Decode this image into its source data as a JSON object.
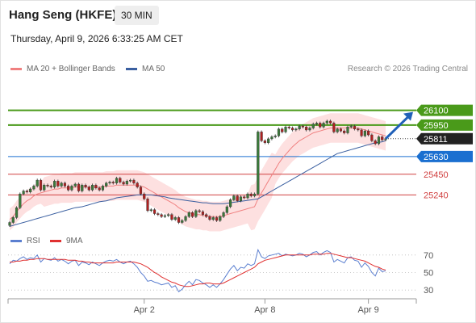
{
  "header": {
    "title": "Hang Seng (HKFE)",
    "timeframe": "30 MIN",
    "datetime": "Thursday, April 9, 2026 6:33:25 AM CET"
  },
  "legend": {
    "bollinger_label": "MA 20 + Bollinger Bands",
    "ma50_label": "MA 50",
    "credit": "Research © 2026 Trading Central"
  },
  "rsi_legend": {
    "rsi_label": "RSI",
    "ma_label": "9MA"
  },
  "colors": {
    "bollinger": "#f08080",
    "band_fill": "#fde0e0",
    "ma50": "#3a5fa0",
    "rsi": "#5b7fd0",
    "rsi_ma": "#e03030",
    "resistance_green": "#4a9a1a",
    "support_blue": "#1a6fd0",
    "support_red": "#d04040",
    "price_tag": "#222222",
    "candle_up": "#3a7a3a",
    "candle_down": "#b02020"
  },
  "chart_data": [
    {
      "type": "candlestick",
      "x_tick_labels": [
        "Apr 2",
        "Apr 8",
        "Apr 9"
      ],
      "ylim": [
        24800,
        26400
      ],
      "levels": [
        {
          "value": 26100,
          "label": "26100",
          "kind": "resistance"
        },
        {
          "value": 25950,
          "label": "25950",
          "kind": "resistance"
        },
        {
          "value": 25811,
          "label": "25811",
          "kind": "last_price"
        },
        {
          "value": 25630,
          "label": "25630",
          "kind": "pivot"
        },
        {
          "value": 25450,
          "label": "25450",
          "kind": "support"
        },
        {
          "value": 25240,
          "label": "25240",
          "kind": "support"
        }
      ],
      "close": [
        24960,
        25010,
        25110,
        25250,
        25280,
        25270,
        25300,
        25330,
        25390,
        25290,
        25340,
        25330,
        25320,
        25380,
        25330,
        25360,
        25330,
        25290,
        25330,
        25350,
        25280,
        25340,
        25320,
        25290,
        25340,
        25310,
        25290,
        25330,
        25360,
        25370,
        25360,
        25410,
        25370,
        25350,
        25380,
        25390,
        25360,
        25320,
        25250,
        25200,
        25080,
        25090,
        25050,
        25040,
        25020,
        25030,
        25040,
        24990,
        25010,
        24960,
        24980,
        25020,
        25060,
        25020,
        25080,
        25070,
        25040,
        25020,
        24990,
        25010,
        24980,
        25020,
        25060,
        25120,
        25190,
        25230,
        25180,
        25220,
        25210,
        25250,
        25230,
        25250,
        25880,
        25790,
        25770,
        25810,
        25830,
        25840,
        25910,
        25880,
        25930,
        25920,
        25900,
        25910,
        25940,
        25930,
        25900,
        25920,
        25960,
        25970,
        25930,
        25970,
        25990,
        25970,
        25880,
        25910,
        25890,
        25870,
        25930,
        25940,
        25910,
        25900,
        25840,
        25890,
        25850,
        25790,
        25760,
        25830,
        25800,
        25811
      ],
      "ma20": [
        24990,
        25020,
        25070,
        25110,
        25150,
        25180,
        25200,
        25230,
        25250,
        25260,
        25270,
        25280,
        25290,
        25300,
        25300,
        25310,
        25310,
        25310,
        25310,
        25320,
        25320,
        25320,
        25320,
        25320,
        25320,
        25320,
        25320,
        25320,
        25330,
        25330,
        25330,
        25340,
        25340,
        25340,
        25340,
        25340,
        25340,
        25340,
        25330,
        25320,
        25300,
        25280,
        25260,
        25240,
        25220,
        25200,
        25180,
        25160,
        25140,
        25110,
        25090,
        25070,
        25060,
        25050,
        25040,
        25040,
        25030,
        25030,
        25020,
        25020,
        25020,
        25020,
        25030,
        25040,
        25050,
        25060,
        25070,
        25080,
        25090,
        25100,
        25110,
        25120,
        25200,
        25260,
        25320,
        25380,
        25440,
        25500,
        25560,
        25610,
        25650,
        25690,
        25730,
        25760,
        25790,
        25810,
        25830,
        25850,
        25870,
        25880,
        25890,
        25900,
        25910,
        25920,
        25920,
        25920,
        25920,
        25920,
        25920,
        25920,
        25920,
        25920,
        25910,
        25900,
        25890,
        25880,
        25870,
        25860,
        25850,
        25840
      ],
      "ma50": [
        24920,
        24930,
        24940,
        24950,
        24960,
        24970,
        24980,
        24990,
        25000,
        25010,
        25020,
        25030,
        25040,
        25050,
        25060,
        25070,
        25080,
        25090,
        25100,
        25110,
        25115,
        25120,
        25130,
        25140,
        25150,
        25160,
        25170,
        25175,
        25180,
        25190,
        25200,
        25210,
        25215,
        25220,
        25225,
        25230,
        25235,
        25240,
        25240,
        25240,
        25240,
        25240,
        25235,
        25230,
        25225,
        25220,
        25210,
        25205,
        25200,
        25195,
        25190,
        25185,
        25180,
        25175,
        25170,
        25165,
        25160,
        25160,
        25155,
        25150,
        25150,
        25150,
        25150,
        25155,
        25160,
        25165,
        25170,
        25175,
        25180,
        25185,
        25190,
        25195,
        25200,
        25220,
        25240,
        25260,
        25280,
        25300,
        25320,
        25340,
        25360,
        25380,
        25400,
        25420,
        25440,
        25460,
        25480,
        25500,
        25520,
        25540,
        25560,
        25580,
        25600,
        25620,
        25640,
        25660,
        25670,
        25680,
        25690,
        25700,
        25710,
        25720,
        25730,
        25740,
        25750,
        25760,
        25770,
        25775,
        25780,
        25790
      ]
    },
    {
      "type": "line",
      "x_tick_labels": [
        "Apr 2",
        "Apr 8",
        "Apr 9"
      ],
      "y_tick_labels": [
        "70",
        "50",
        "30"
      ],
      "ylim": [
        20,
        80
      ],
      "series": [
        {
          "name": "RSI",
          "values": [
            60,
            64,
            63,
            66,
            68,
            65,
            67,
            66,
            70,
            62,
            66,
            65,
            64,
            67,
            63,
            65,
            63,
            60,
            63,
            64,
            58,
            62,
            61,
            59,
            62,
            60,
            58,
            61,
            63,
            64,
            63,
            65,
            62,
            60,
            62,
            63,
            60,
            56,
            50,
            46,
            40,
            41,
            39,
            38,
            36,
            37,
            38,
            33,
            35,
            28,
            31,
            36,
            40,
            36,
            42,
            41,
            38,
            36,
            33,
            36,
            33,
            37,
            42,
            48,
            54,
            58,
            52,
            56,
            55,
            60,
            58,
            60,
            76,
            68,
            66,
            69,
            70,
            71,
            72,
            69,
            71,
            70,
            69,
            70,
            72,
            71,
            68,
            70,
            73,
            74,
            70,
            73,
            75,
            73,
            62,
            65,
            63,
            61,
            67,
            68,
            64,
            63,
            56,
            61,
            57,
            50,
            46,
            55,
            51,
            52
          ]
        },
        {
          "name": "9MA",
          "values": [
            62,
            62,
            63,
            63,
            64,
            64,
            65,
            65,
            66,
            66,
            66,
            65,
            65,
            65,
            65,
            65,
            65,
            64,
            64,
            64,
            63,
            63,
            62,
            62,
            61,
            61,
            61,
            61,
            61,
            61,
            61,
            62,
            62,
            62,
            62,
            62,
            62,
            61,
            60,
            58,
            56,
            53,
            50,
            48,
            45,
            43,
            41,
            39,
            38,
            36,
            35,
            34,
            34,
            35,
            36,
            37,
            37,
            38,
            38,
            37,
            37,
            37,
            38,
            40,
            42,
            44,
            46,
            48,
            50,
            52,
            54,
            56,
            60,
            62,
            64,
            65,
            66,
            67,
            68,
            69,
            70,
            70,
            70,
            70,
            70,
            70,
            70,
            70,
            71,
            71,
            71,
            71,
            72,
            72,
            71,
            70,
            69,
            68,
            67,
            67,
            66,
            65,
            64,
            63,
            61,
            59,
            57,
            56,
            54,
            53
          ]
        }
      ]
    }
  ]
}
